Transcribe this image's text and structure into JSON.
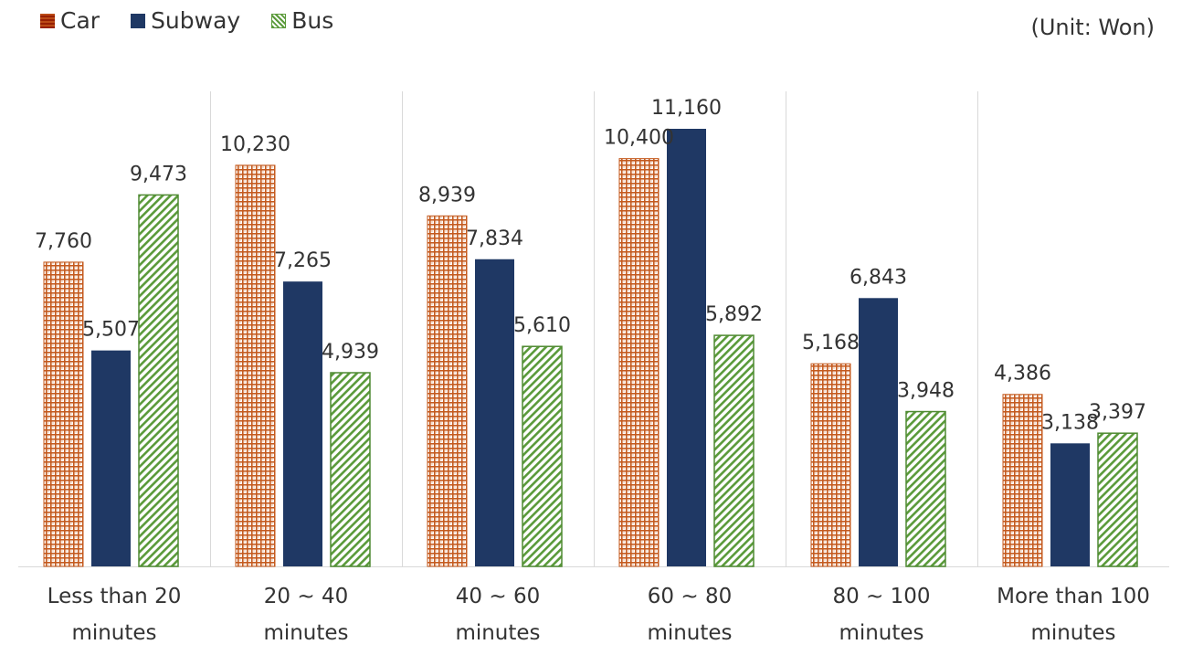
{
  "unit_note": "(Unit: Won)",
  "chart_data": {
    "type": "bar",
    "categories": [
      [
        "Less than 20",
        "minutes"
      ],
      [
        "20 ~ 40",
        "minutes"
      ],
      [
        "40 ~ 60",
        "minutes"
      ],
      [
        "60 ~ 80",
        "minutes"
      ],
      [
        "80 ~ 100",
        "minutes"
      ],
      [
        "More than 100",
        "minutes"
      ]
    ],
    "series": [
      {
        "name": "Car",
        "color": "#c45a1e",
        "pattern": "dots",
        "values": [
          7760,
          10230,
          8939,
          10400,
          5168,
          4386
        ],
        "labels": [
          "7,760",
          "10,230",
          "8,939",
          "10,400",
          "5,168",
          "4,386"
        ]
      },
      {
        "name": "Subway",
        "color": "#1f3864",
        "pattern": "solid",
        "values": [
          5507,
          7265,
          7834,
          11160,
          6843,
          3138
        ],
        "labels": [
          "5,507",
          "7,265",
          "7,834",
          "11,160",
          "6,843",
          "3,138"
        ]
      },
      {
        "name": "Bus",
        "color": "#5a9a3a",
        "pattern": "diagonal",
        "values": [
          9473,
          4939,
          5610,
          5892,
          3948,
          3397
        ],
        "labels": [
          "9,473",
          "4,939",
          "5,610",
          "5,892",
          "3,948",
          "3,397"
        ]
      }
    ],
    "ylim": [
      0,
      11160
    ],
    "grid": false,
    "legend": "top-left",
    "category_separators": true
  }
}
